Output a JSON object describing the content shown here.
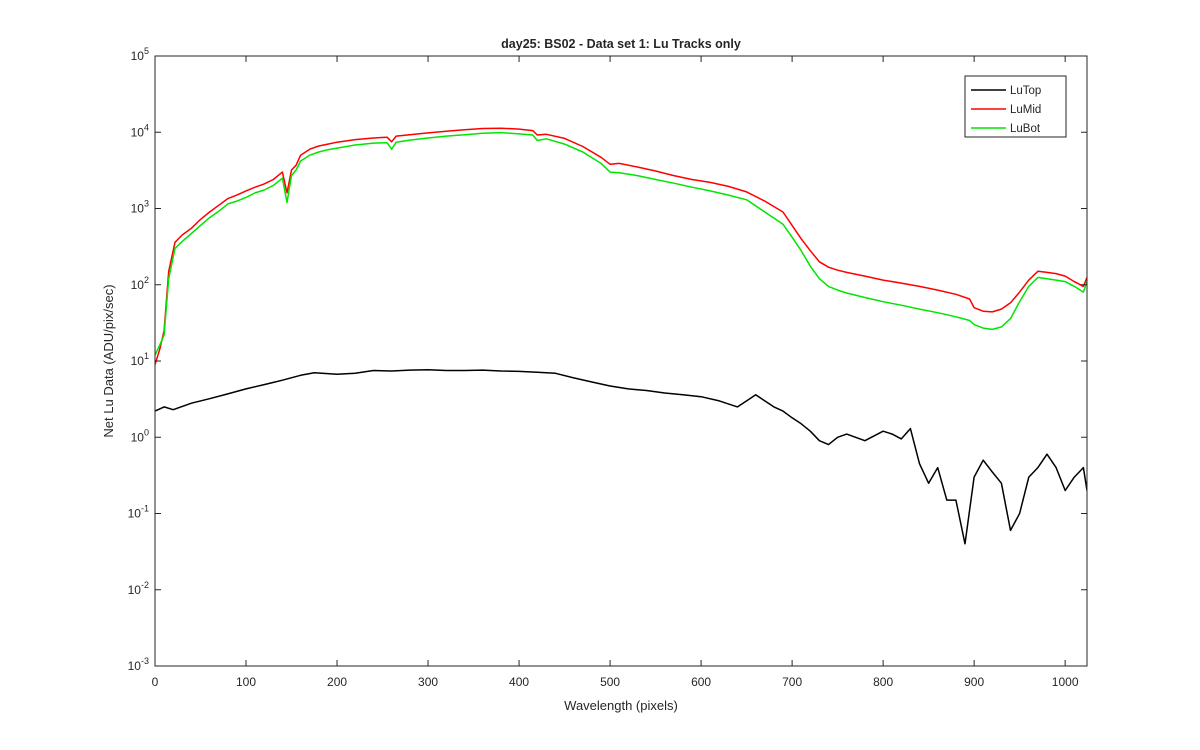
{
  "chart_data": {
    "type": "line",
    "title": "day25: BS02 - Data set 1: Lu Tracks only",
    "xlabel": "Wavelength (pixels)",
    "ylabel": "Net Lu Data (ADU/pix/sec)",
    "xlim": [
      0,
      1024
    ],
    "ylim": [
      0.001,
      100000
    ],
    "yscale": "log",
    "grid": false,
    "legend_position": "top-right",
    "x_ticks": [
      "0",
      "100",
      "200",
      "300",
      "400",
      "500",
      "600",
      "700",
      "800",
      "900",
      "1000"
    ],
    "y_ticks": [
      {
        "base": "10",
        "exp": "-3"
      },
      {
        "base": "10",
        "exp": "-2"
      },
      {
        "base": "10",
        "exp": "-1"
      },
      {
        "base": "10",
        "exp": "0"
      },
      {
        "base": "10",
        "exp": "1"
      },
      {
        "base": "10",
        "exp": "2"
      },
      {
        "base": "10",
        "exp": "3"
      },
      {
        "base": "10",
        "exp": "4"
      },
      {
        "base": "10",
        "exp": "5"
      }
    ],
    "series": [
      {
        "name": "LuTop",
        "color": "#000000",
        "x": [
          0,
          10,
          20,
          40,
          60,
          80,
          100,
          120,
          140,
          160,
          175,
          200,
          220,
          240,
          260,
          280,
          300,
          320,
          340,
          360,
          380,
          400,
          420,
          440,
          460,
          480,
          500,
          520,
          540,
          560,
          580,
          600,
          620,
          640,
          650,
          660,
          670,
          680,
          690,
          700,
          710,
          720,
          730,
          740,
          750,
          760,
          780,
          800,
          810,
          820,
          830,
          840,
          850,
          860,
          870,
          880,
          890,
          900,
          910,
          920,
          930,
          940,
          950,
          960,
          970,
          980,
          990,
          1000,
          1010,
          1020,
          1024
        ],
        "y": [
          2.2,
          2.5,
          2.3,
          2.8,
          3.2,
          3.7,
          4.3,
          4.9,
          5.6,
          6.5,
          7.0,
          6.7,
          6.9,
          7.5,
          7.4,
          7.6,
          7.7,
          7.5,
          7.5,
          7.6,
          7.4,
          7.3,
          7.1,
          6.9,
          6.0,
          5.3,
          4.7,
          4.3,
          4.1,
          3.8,
          3.6,
          3.4,
          3.0,
          2.5,
          3.0,
          3.6,
          3.0,
          2.5,
          2.2,
          1.8,
          1.5,
          1.2,
          0.9,
          0.8,
          1.0,
          1.1,
          0.9,
          1.2,
          1.1,
          0.95,
          1.3,
          0.45,
          0.25,
          0.4,
          0.15,
          0.15,
          0.04,
          0.3,
          0.5,
          0.35,
          0.25,
          0.06,
          0.1,
          0.3,
          0.4,
          0.6,
          0.4,
          0.2,
          0.3,
          0.4,
          0.2
        ]
      },
      {
        "name": "LuMid",
        "color": "#ff0000",
        "x": [
          0,
          5,
          10,
          15,
          22,
          30,
          40,
          50,
          60,
          70,
          80,
          90,
          100,
          110,
          120,
          130,
          140,
          145,
          150,
          155,
          160,
          170,
          180,
          190,
          200,
          220,
          240,
          255,
          260,
          265,
          280,
          300,
          320,
          340,
          360,
          380,
          400,
          415,
          420,
          430,
          450,
          470,
          490,
          500,
          510,
          530,
          550,
          570,
          590,
          610,
          630,
          650,
          670,
          690,
          700,
          710,
          720,
          730,
          740,
          750,
          760,
          780,
          800,
          820,
          840,
          860,
          880,
          895,
          900,
          910,
          920,
          930,
          940,
          950,
          960,
          970,
          980,
          990,
          1000,
          1010,
          1020,
          1024
        ],
        "y": [
          9,
          14,
          25,
          150,
          360,
          450,
          550,
          720,
          900,
          1100,
          1350,
          1500,
          1700,
          1900,
          2100,
          2400,
          3000,
          1600,
          3200,
          3700,
          5000,
          6000,
          6600,
          7000,
          7400,
          8000,
          8400,
          8600,
          7500,
          8900,
          9300,
          9800,
          10300,
          10800,
          11200,
          11300,
          11000,
          10500,
          9200,
          9400,
          8300,
          6500,
          4700,
          3800,
          3900,
          3500,
          3100,
          2700,
          2400,
          2200,
          1950,
          1650,
          1250,
          900,
          600,
          400,
          280,
          200,
          170,
          155,
          145,
          130,
          115,
          105,
          95,
          85,
          75,
          65,
          50,
          45,
          44,
          48,
          58,
          80,
          115,
          150,
          145,
          140,
          130,
          110,
          95,
          125
        ]
      },
      {
        "name": "LuBot",
        "color": "#00e600",
        "x": [
          0,
          5,
          10,
          15,
          22,
          30,
          40,
          50,
          60,
          70,
          80,
          90,
          100,
          110,
          120,
          130,
          140,
          145,
          150,
          155,
          160,
          170,
          180,
          190,
          200,
          220,
          240,
          255,
          260,
          265,
          280,
          300,
          320,
          340,
          360,
          380,
          400,
          415,
          420,
          430,
          450,
          470,
          490,
          500,
          510,
          530,
          550,
          570,
          590,
          610,
          630,
          650,
          670,
          690,
          700,
          710,
          720,
          730,
          740,
          750,
          760,
          780,
          800,
          820,
          840,
          860,
          880,
          895,
          900,
          910,
          920,
          930,
          940,
          950,
          960,
          970,
          980,
          990,
          1000,
          1010,
          1020,
          1024
        ],
        "y": [
          12,
          16,
          22,
          120,
          300,
          370,
          470,
          600,
          760,
          920,
          1150,
          1250,
          1400,
          1600,
          1750,
          2000,
          2500,
          1200,
          2700,
          3200,
          4200,
          5000,
          5500,
          5900,
          6200,
          6800,
          7200,
          7300,
          6000,
          7400,
          7900,
          8400,
          8900,
          9300,
          9700,
          9900,
          9500,
          9200,
          7800,
          8200,
          7000,
          5500,
          3900,
          3000,
          2950,
          2700,
          2400,
          2150,
          1900,
          1700,
          1500,
          1300,
          900,
          620,
          420,
          280,
          175,
          120,
          95,
          85,
          78,
          68,
          60,
          54,
          48,
          43,
          38,
          34,
          30,
          27,
          26,
          28,
          36,
          60,
          95,
          125,
          120,
          115,
          110,
          95,
          80,
          110
        ]
      }
    ]
  }
}
